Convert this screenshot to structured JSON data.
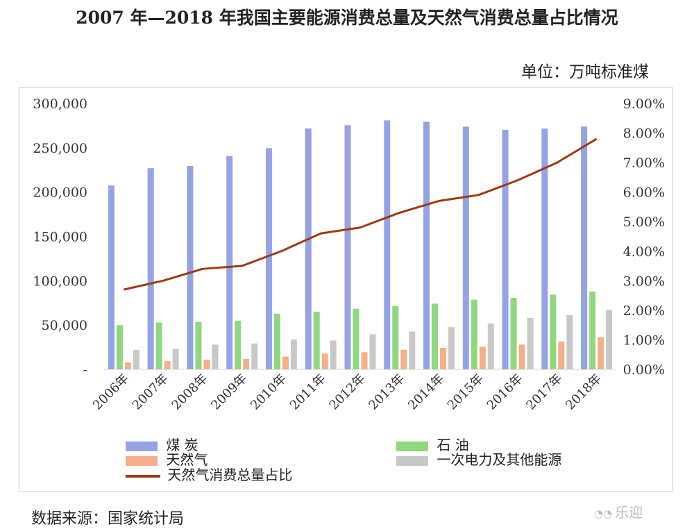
{
  "title": "2007 年—2018 年我国主要能源消费总量及天然气消费总量占比情况",
  "unit_label": "单位：万吨标准煤",
  "source": "数据来源：国家统计局",
  "watermark": "乐迎",
  "colors": {
    "coal": "#95A3E6",
    "oil": "#8FD87F",
    "gas": "#F4B08A",
    "electric": "#C8C8C8",
    "ratio_line": "#9C3A12"
  },
  "chart_data": {
    "type": "bar",
    "categories": [
      "2006年",
      "2007年",
      "2008年",
      "2009年",
      "2010年",
      "2011年",
      "2012年",
      "2013年",
      "2014年",
      "2015年",
      "2016年",
      "2017年",
      "2018年"
    ],
    "series": [
      {
        "name": "煤 炭",
        "axis": "left",
        "values": [
          207400,
          227000,
          229500,
          240700,
          249600,
          271700,
          275500,
          280900,
          279300,
          273800,
          270300,
          271600,
          274000
        ]
      },
      {
        "name": "石 油",
        "axis": "left",
        "values": [
          49900,
          52900,
          53500,
          54900,
          62800,
          65000,
          68400,
          71300,
          74100,
          78700,
          80600,
          84300,
          87700
        ]
      },
      {
        "name": "天然气",
        "axis": "left",
        "values": [
          7700,
          9300,
          10900,
          11800,
          14400,
          17800,
          19300,
          22100,
          24300,
          25400,
          27900,
          31400,
          36300
        ]
      },
      {
        "name": "一次电力及其他能源",
        "axis": "left",
        "values": [
          21900,
          23200,
          27900,
          29200,
          33700,
          32500,
          39700,
          42700,
          47700,
          51700,
          58100,
          61200,
          67200
        ]
      },
      {
        "name": "天然气消费总量占比",
        "axis": "right",
        "type": "line",
        "values": [
          2.7,
          3.0,
          3.4,
          3.5,
          4.0,
          4.6,
          4.8,
          5.3,
          5.7,
          5.9,
          6.4,
          7.0,
          7.8
        ]
      }
    ],
    "y_left": {
      "ticks": [
        "300,000",
        "250,000",
        "200,000",
        "150,000",
        "100,000",
        "50,000",
        "-"
      ],
      "ylim": [
        0,
        300000
      ]
    },
    "y_right": {
      "ticks": [
        "9.00%",
        "8.00%",
        "7.00%",
        "6.00%",
        "5.00%",
        "4.00%",
        "3.00%",
        "2.00%",
        "1.00%",
        "0.00%"
      ],
      "ylim": [
        0,
        9
      ]
    },
    "grid": false,
    "legend_position": "bottom"
  }
}
